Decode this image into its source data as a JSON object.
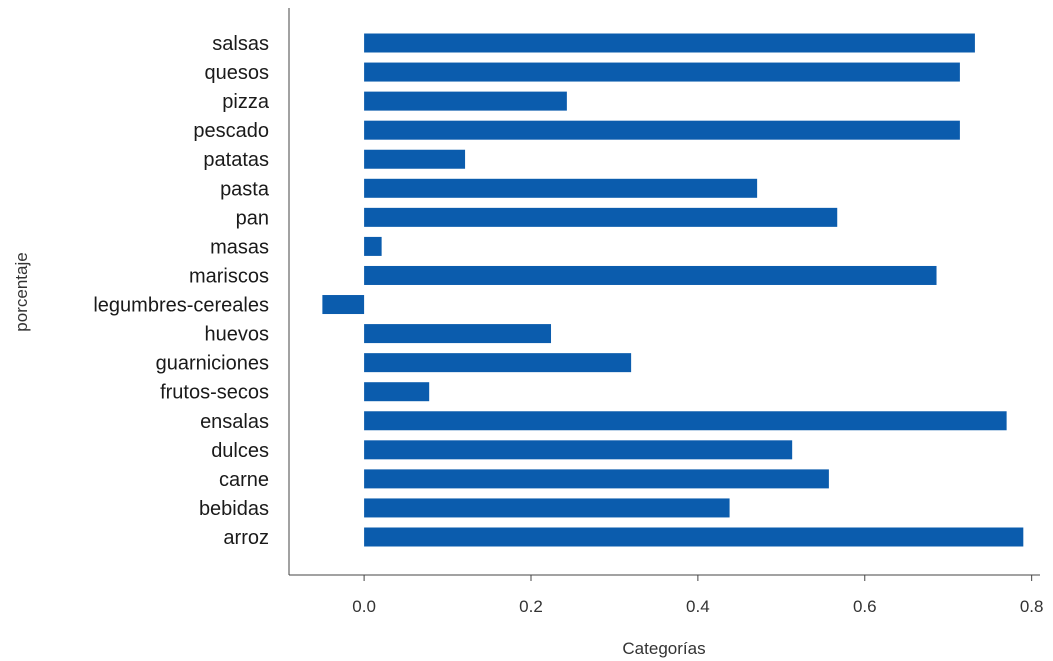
{
  "chart_data": {
    "type": "bar",
    "orientation": "horizontal",
    "title": "",
    "xlabel": "Categorías",
    "ylabel": "porcentaje",
    "xlim": [
      -0.09,
      0.81
    ],
    "xticks": [
      0.0,
      0.2,
      0.4,
      0.6,
      0.8
    ],
    "tick_labels": [
      "0.0",
      "0.2",
      "0.4",
      "0.6",
      "0.8"
    ],
    "grid": false,
    "legend": "none",
    "bar_color": "#0b5cad",
    "categories": [
      "arroz",
      "bebidas",
      "carne",
      "dulces",
      "ensalas",
      "frutos-secos",
      "guarniciones",
      "huevos",
      "legumbres-cereales",
      "mariscos",
      "masas",
      "pan",
      "pasta",
      "patatas",
      "pescado",
      "pizza",
      "quesos",
      "salsas"
    ],
    "values": [
      0.79,
      0.438,
      0.557,
      0.513,
      0.77,
      0.078,
      0.32,
      0.224,
      -0.05,
      0.686,
      0.021,
      0.567,
      0.471,
      0.121,
      0.714,
      0.243,
      0.714,
      0.732
    ]
  }
}
